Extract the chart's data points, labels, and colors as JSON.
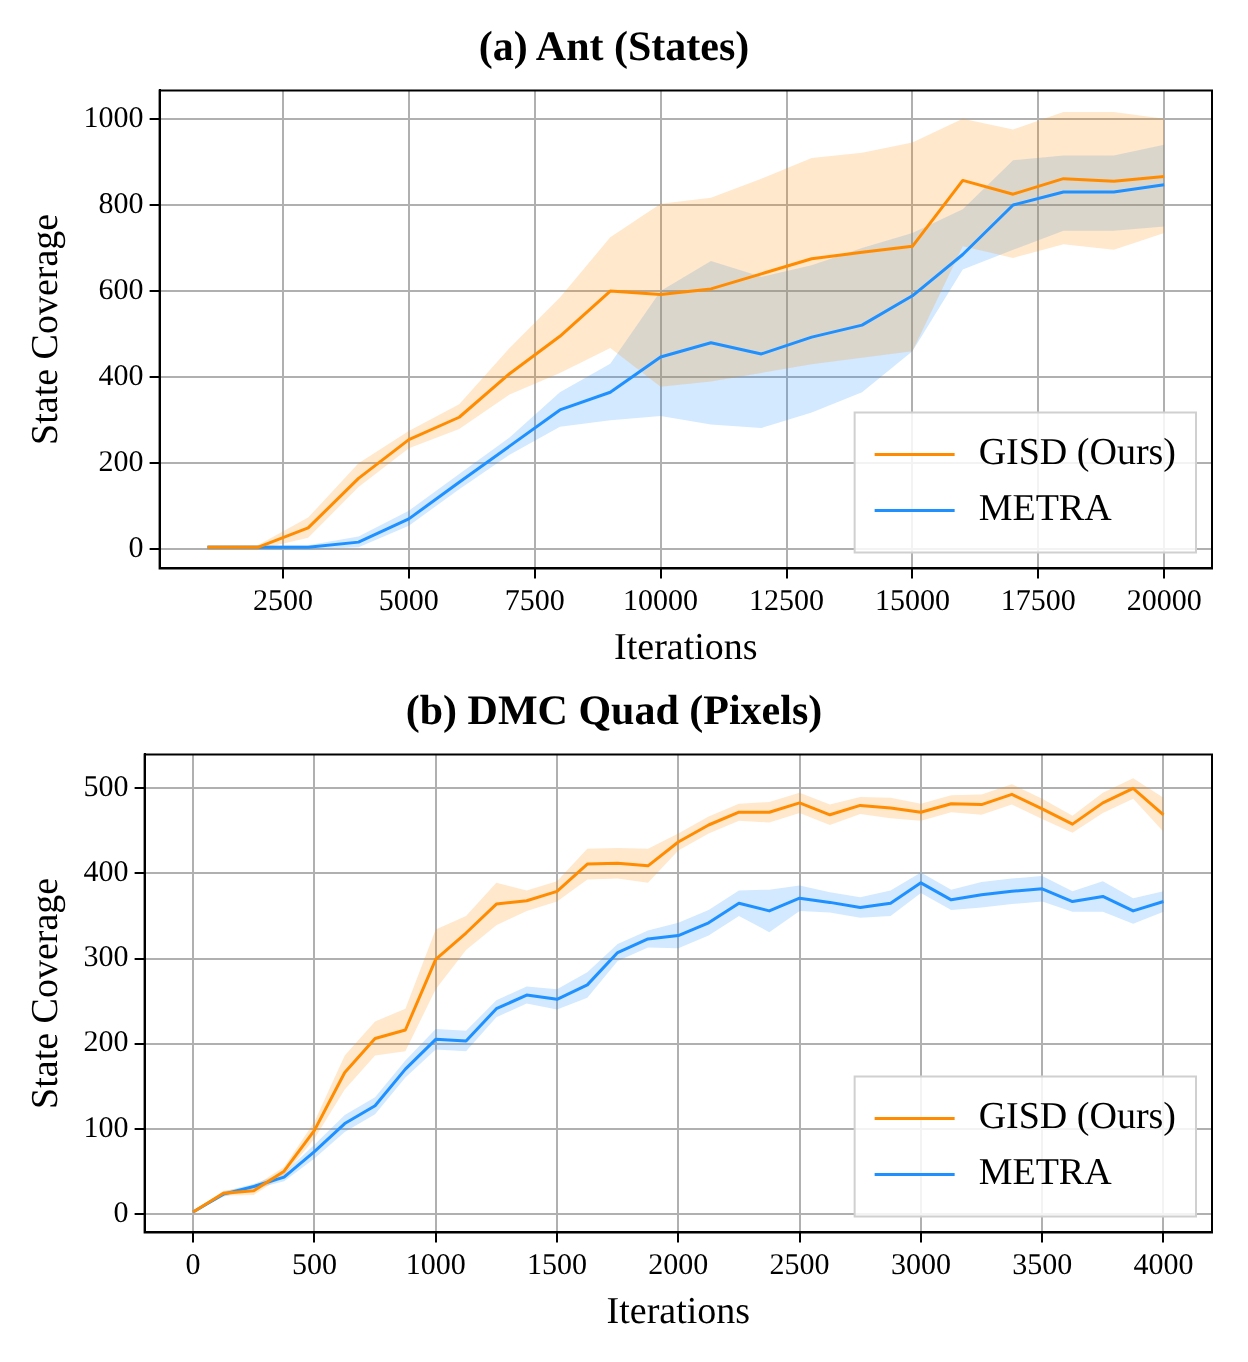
{
  "chart_data": [
    {
      "type": "line",
      "title": "(a) Ant (States)",
      "xlabel": "Iterations",
      "ylabel": "State Coverage",
      "x": [
        1000,
        2000,
        3000,
        4000,
        5000,
        6000,
        7000,
        8000,
        9000,
        10000,
        11000,
        12000,
        13000,
        14000,
        15000,
        16000,
        17000,
        18000,
        19000,
        20000
      ],
      "series": [
        {
          "name": "GISD (Ours)",
          "color": "#ff8c00",
          "values": [
            5,
            5,
            50,
            165,
            255,
            307,
            408,
            495,
            600,
            592,
            605,
            640,
            675,
            690,
            704,
            857,
            825,
            861,
            855,
            866
          ],
          "lower": [
            0,
            0,
            27,
            145,
            235,
            280,
            360,
            410,
            468,
            378,
            390,
            410,
            430,
            445,
            460,
            704,
            677,
            709,
            696,
            735
          ],
          "upper": [
            10,
            10,
            74,
            200,
            275,
            337,
            468,
            585,
            725,
            803,
            817,
            861,
            909,
            921,
            945,
            1000,
            975,
            1016,
            1016,
            1000
          ]
        },
        {
          "name": "METRA",
          "color": "#1e90ff",
          "values": [
            5,
            5,
            5,
            17,
            71,
            156,
            240,
            324,
            365,
            447,
            480,
            454,
            493,
            521,
            589,
            685,
            800,
            830,
            830,
            847
          ],
          "lower": [
            0,
            0,
            0,
            5,
            55,
            140,
            220,
            285,
            300,
            310,
            290,
            282,
            318,
            365,
            460,
            650,
            696,
            740,
            740,
            750
          ],
          "upper": [
            10,
            10,
            10,
            30,
            90,
            175,
            260,
            365,
            431,
            600,
            670,
            633,
            660,
            700,
            735,
            790,
            904,
            915,
            915,
            940
          ]
        }
      ],
      "xlim": [
        50,
        20950
      ],
      "ylim": [
        -44,
        1066
      ],
      "xticks": [
        2500,
        5000,
        7500,
        10000,
        12500,
        15000,
        17500,
        20000
      ],
      "yticks": [
        0,
        200,
        400,
        600,
        800,
        1000
      ],
      "grid": true,
      "legend": "bottom right"
    },
    {
      "type": "line",
      "title": "(b) DMC Quad (Pixels)",
      "xlabel": "Iterations",
      "ylabel": "State Coverage",
      "x": [
        0,
        125,
        250,
        375,
        500,
        625,
        750,
        875,
        1000,
        1125,
        1250,
        1375,
        1500,
        1625,
        1750,
        1875,
        2000,
        2125,
        2250,
        2375,
        2500,
        2625,
        2750,
        2875,
        3000,
        3125,
        3250,
        3375,
        3500,
        3625,
        3750,
        3875,
        4000
      ],
      "series": [
        {
          "name": "GISD (Ours)",
          "color": "#ff8c00",
          "values": [
            2,
            24,
            27,
            50,
            98,
            166,
            206,
            216,
            299,
            330,
            364,
            368,
            379,
            411,
            412,
            409,
            437,
            457,
            472,
            472,
            483,
            469,
            480,
            477,
            472,
            482,
            481,
            493,
            476,
            458,
            483,
            500,
            469
          ],
          "lower": [
            2,
            21,
            22,
            45,
            88,
            146,
            186,
            191,
            264,
            310,
            339,
            356,
            367,
            393,
            394,
            389,
            427,
            447,
            462,
            460,
            471,
            457,
            470,
            465,
            462,
            472,
            469,
            481,
            464,
            448,
            471,
            488,
            449
          ],
          "upper": [
            2,
            27,
            32,
            55,
            108,
            186,
            226,
            241,
            334,
            350,
            389,
            380,
            391,
            429,
            430,
            429,
            447,
            467,
            482,
            484,
            495,
            481,
            490,
            489,
            482,
            492,
            493,
            505,
            488,
            468,
            495,
            512,
            489
          ]
        },
        {
          "name": "METRA",
          "color": "#1e90ff",
          "values": [
            2,
            23,
            32,
            43,
            73,
            106,
            127,
            170,
            205,
            203,
            241,
            257,
            252,
            269,
            307,
            323,
            327,
            342,
            365,
            356,
            371,
            366,
            360,
            365,
            389,
            369,
            375,
            379,
            382,
            367,
            373,
            356,
            367
          ],
          "lower": [
            2,
            20,
            29,
            38,
            65,
            96,
            117,
            160,
            193,
            191,
            231,
            247,
            240,
            254,
            297,
            313,
            312,
            327,
            350,
            331,
            356,
            354,
            348,
            350,
            377,
            357,
            360,
            364,
            367,
            355,
            355,
            341,
            355
          ],
          "upper": [
            2,
            26,
            35,
            48,
            81,
            116,
            137,
            180,
            217,
            215,
            251,
            267,
            264,
            284,
            317,
            333,
            342,
            357,
            380,
            381,
            386,
            378,
            372,
            380,
            401,
            381,
            390,
            394,
            397,
            379,
            391,
            371,
            379
          ]
        }
      ],
      "xlim": [
        -200,
        4200
      ],
      "ylim": [
        -22,
        540
      ],
      "xticks": [
        0,
        500,
        1000,
        1500,
        2000,
        2500,
        3000,
        3500,
        4000
      ],
      "yticks": [
        0,
        100,
        200,
        300,
        400,
        500
      ],
      "grid": true,
      "legend": "bottom right"
    }
  ]
}
